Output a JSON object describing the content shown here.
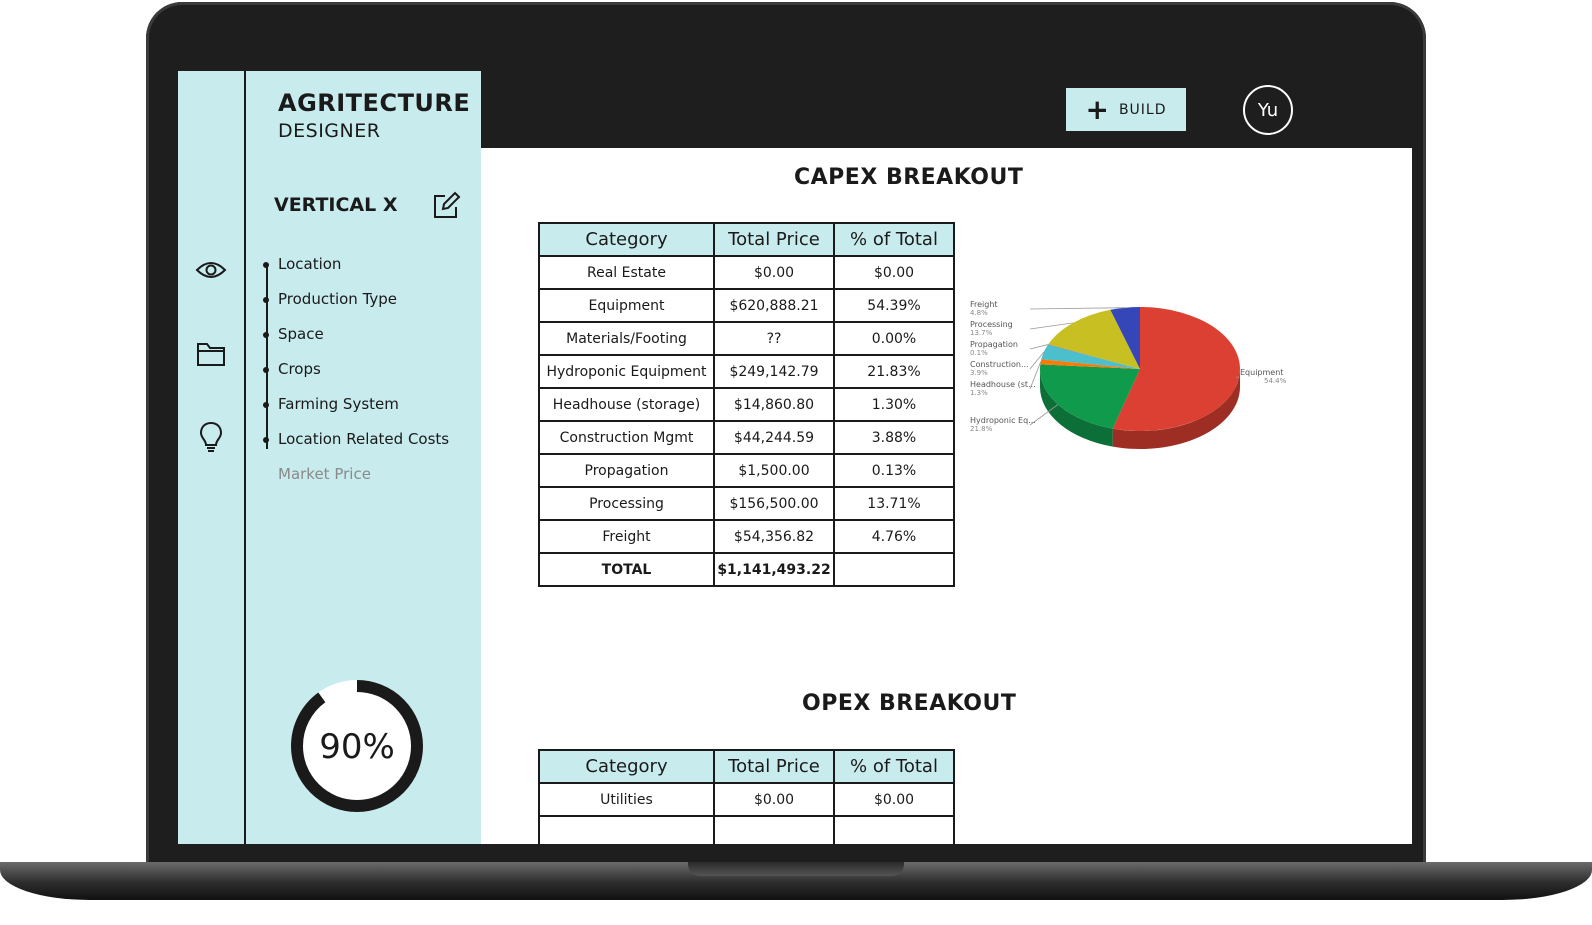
{
  "app": {
    "brand_line1": "AGRITECTURE",
    "brand_line2": "DESIGNER"
  },
  "rail": {
    "icons": [
      "eye-icon",
      "folder-icon",
      "lightbulb-icon"
    ]
  },
  "sidebar": {
    "project_name": "VERTICAL X",
    "steps": [
      {
        "label": "Location",
        "done": true
      },
      {
        "label": "Production Type",
        "done": true
      },
      {
        "label": "Space",
        "done": true
      },
      {
        "label": "Crops",
        "done": true
      },
      {
        "label": "Farming System",
        "done": true
      },
      {
        "label": "Location Related Costs",
        "done": true
      },
      {
        "label": "Market Price",
        "done": false
      }
    ],
    "progress_label": "90%",
    "progress_value": 0.9
  },
  "topbar": {
    "build_label": "BUILD",
    "avatar_initials": "Yu"
  },
  "capex": {
    "title": "CAPEX BREAKOUT",
    "headers": [
      "Category",
      "Total Price",
      "% of Total"
    ],
    "rows": [
      [
        "Real Estate",
        "$0.00",
        "$0.00"
      ],
      [
        "Equipment",
        "$620,888.21",
        "54.39%"
      ],
      [
        "Materials/Footing",
        "??",
        "0.00%"
      ],
      [
        "Hydroponic Equipment",
        "$249,142.79",
        "21.83%"
      ],
      [
        "Headhouse (storage)",
        "$14,860.80",
        "1.30%"
      ],
      [
        "Construction Mgmt",
        "$44,244.59",
        "3.88%"
      ],
      [
        "Propagation",
        "$1,500.00",
        "0.13%"
      ],
      [
        "Processing",
        "$156,500.00",
        "13.71%"
      ],
      [
        "Freight",
        "$54,356.82",
        "4.76%"
      ],
      [
        "TOTAL",
        "$1,141,493.22",
        ""
      ]
    ]
  },
  "capex_pie": {
    "slices": [
      {
        "label": "Equipment",
        "pct_label": "54.4%",
        "value": 54.4,
        "color": "#dc4032"
      },
      {
        "label": "Hydroponic Eq...",
        "pct_label": "21.8%",
        "value": 21.8,
        "color": "#109a4c"
      },
      {
        "label": "Headhouse (st...",
        "pct_label": "1.3%",
        "value": 1.3,
        "color": "#ff7a00"
      },
      {
        "label": "Construction...",
        "pct_label": "3.9%",
        "value": 3.9,
        "color": "#4cbfcc"
      },
      {
        "label": "Propagation",
        "pct_label": "0.1%",
        "value": 0.1,
        "color": "#8e44ad"
      },
      {
        "label": "Processing",
        "pct_label": "13.7%",
        "value": 13.7,
        "color": "#c8c023"
      },
      {
        "label": "Freight",
        "pct_label": "4.8%",
        "value": 4.8,
        "color": "#3546b8"
      }
    ]
  },
  "opex": {
    "title": "OPEX BREAKOUT",
    "headers": [
      "Category",
      "Total Price",
      "% of Total"
    ],
    "rows": [
      [
        "Utilities",
        "$0.00",
        "$0.00"
      ],
      [
        "",
        "",
        ""
      ]
    ]
  }
}
